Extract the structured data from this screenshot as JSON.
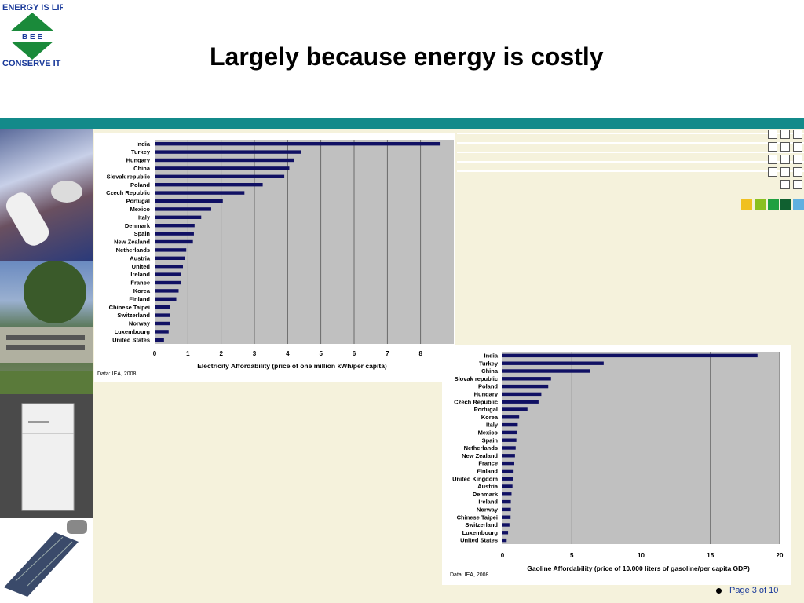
{
  "logo": {
    "line1": "ENERGY IS LIFE",
    "letters": "B E E",
    "line2": "CONSERVE IT"
  },
  "title": "Largely because energy is costly",
  "footer": {
    "page": "Page 3 of 10"
  },
  "colors": {
    "teal": "#138a8a",
    "bar": "#101063",
    "plot_bg": "#c0c0c0"
  },
  "chart_data": [
    {
      "type": "bar",
      "orientation": "horizontal",
      "categories": [
        "India",
        "Turkey",
        "Hungary",
        "China",
        "Slovak republic",
        "Poland",
        "Czech Republic",
        "Portugal",
        "Mexico",
        "Italy",
        "Denmark",
        "Spain",
        "New Zealand",
        "Netherlands",
        "Austria",
        "United",
        "Ireland",
        "France",
        "Korea",
        "Finland",
        "Chinese Taipei",
        "Switzerland",
        "Norway",
        "Luxembourg",
        "United States"
      ],
      "values": [
        8.6,
        4.4,
        4.2,
        4.05,
        3.9,
        3.25,
        2.7,
        2.05,
        1.7,
        1.4,
        1.2,
        1.18,
        1.15,
        0.95,
        0.9,
        0.85,
        0.8,
        0.78,
        0.72,
        0.65,
        0.45,
        0.45,
        0.45,
        0.42,
        0.28
      ],
      "xlabel": "Electricity Affordability (price of one million kWh/per capita)",
      "xlim": [
        0,
        9
      ],
      "xticks": [
        "0",
        "1",
        "2",
        "3",
        "4",
        "5",
        "6",
        "7",
        "8"
      ],
      "grid": true,
      "source": "Data: IEA, 2008"
    },
    {
      "type": "bar",
      "orientation": "horizontal",
      "categories": [
        "India",
        "Turkey",
        "China",
        "Slovak republic",
        "Poland",
        "Hungary",
        "Czech Republic",
        "Portugal",
        "Korea",
        "Italy",
        "Mexico",
        "Spain",
        "Netherlands",
        "New Zealand",
        "France",
        "Finland",
        "United Kingdom",
        "Austria",
        "Denmark",
        "Ireland",
        "Norway",
        "Chinese Taipei",
        "Switzerland",
        "Luxembourg",
        "United States"
      ],
      "values": [
        18.4,
        7.3,
        6.3,
        3.5,
        3.3,
        2.8,
        2.6,
        1.8,
        1.2,
        1.1,
        1.05,
        1.0,
        0.95,
        0.9,
        0.85,
        0.8,
        0.78,
        0.72,
        0.65,
        0.6,
        0.6,
        0.58,
        0.5,
        0.4,
        0.3
      ],
      "xlabel": "Gaoline Affordability (price of 10.000 liters of gasoline/per capita GDP)",
      "xlim": [
        0,
        20
      ],
      "xticks": [
        "0",
        "5",
        "10",
        "15",
        "20"
      ],
      "grid": true,
      "source": "Data: IEA, 2008"
    }
  ]
}
